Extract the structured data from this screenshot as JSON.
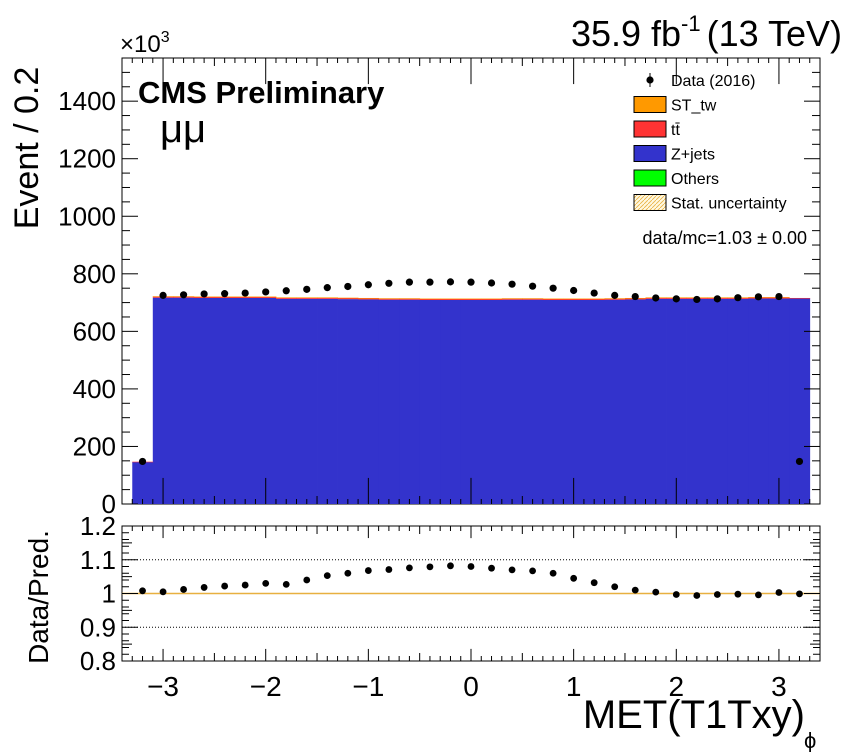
{
  "lumi_label": "35.9 fb",
  "lumi_sup": "-1",
  "energy_label": "(13 TeV)",
  "cms_label": "CMS Preliminary",
  "channel_label": "μμ",
  "exponent_prefix": "×10",
  "exponent_sup": "3",
  "ratio_text": "data/mc=1.03 ± 0.00",
  "legend": [
    {
      "label": "Data (2016)",
      "kind": "data"
    },
    {
      "label": "ST_tw",
      "kind": "fill",
      "color": "#ff9900"
    },
    {
      "label": "tt̄",
      "kind": "fill",
      "color": "#ff3333"
    },
    {
      "label": "Z+jets",
      "kind": "fill",
      "color": "#3333cc"
    },
    {
      "label": "Others",
      "kind": "fill",
      "color": "#00ff00"
    },
    {
      "label": "Stat. uncertainty",
      "kind": "hatch",
      "color": "#ffcc66"
    }
  ],
  "chart_data": [
    {
      "type": "bar",
      "subtype": "stacked-histogram",
      "ylabel": "Event / 0.2",
      "ylim": [
        0,
        1550
      ],
      "y_ticks": [
        0,
        200,
        400,
        600,
        800,
        1000,
        1200,
        1400
      ],
      "xlim": [
        -3.4,
        3.4
      ],
      "bin_edges": [
        -3.3,
        -3.1,
        -2.9,
        -2.7,
        -2.5,
        -2.3,
        -2.1,
        -1.9,
        -1.7,
        -1.5,
        -1.3,
        -1.1,
        -0.9,
        -0.7,
        -0.5,
        -0.3,
        -0.1,
        0.1,
        0.3,
        0.5,
        0.7,
        0.9,
        1.1,
        1.3,
        1.5,
        1.7,
        1.9,
        2.1,
        2.3,
        2.5,
        2.7,
        2.9,
        3.1,
        3.3
      ],
      "stack_series": [
        {
          "name": "Z+jets",
          "color": "#3333cc",
          "values": [
            146,
            717,
            717,
            716,
            716,
            716,
            716,
            713,
            713,
            713,
            712,
            711,
            710,
            710,
            709,
            709,
            709,
            709,
            710,
            710,
            709,
            709,
            709,
            710,
            711,
            713,
            713,
            713,
            713,
            713,
            714,
            714,
            715
          ]
        },
        {
          "name": "tt̄",
          "color": "#ff3333",
          "values": [
            1,
            4,
            4,
            4,
            4,
            4,
            4,
            4,
            4,
            4,
            4,
            4,
            4,
            4,
            4,
            4,
            4,
            4,
            4,
            4,
            4,
            4,
            4,
            4,
            4,
            4,
            4,
            4,
            4,
            4,
            4,
            4,
            1
          ]
        },
        {
          "name": "ST_tw",
          "color": "#ff9900",
          "values": [
            0,
            1,
            1,
            1,
            1,
            1,
            1,
            1,
            1,
            1,
            1,
            1,
            1,
            1,
            1,
            1,
            1,
            1,
            1,
            1,
            1,
            1,
            1,
            1,
            1,
            1,
            1,
            1,
            1,
            1,
            1,
            1,
            0
          ]
        }
      ],
      "data_series": {
        "name": "Data (2016)",
        "x": [
          -3.2,
          -3.0,
          -2.8,
          -2.6,
          -2.4,
          -2.2,
          -2.0,
          -1.8,
          -1.6,
          -1.4,
          -1.2,
          -1.0,
          -0.8,
          -0.6,
          -0.4,
          -0.2,
          0.0,
          0.2,
          0.4,
          0.6,
          0.8,
          1.0,
          1.2,
          1.4,
          1.6,
          1.8,
          2.0,
          2.2,
          2.4,
          2.6,
          2.8,
          3.0,
          3.2
        ],
        "values": [
          148,
          725,
          727,
          730,
          731,
          733,
          737,
          741,
          746,
          752,
          756,
          762,
          767,
          771,
          771,
          772,
          771,
          768,
          764,
          757,
          750,
          742,
          733,
          725,
          721,
          716,
          713,
          711,
          713,
          717,
          720,
          721,
          148
        ]
      }
    },
    {
      "type": "scatter",
      "xlabel": "MET(T1Txy)",
      "xlabel_sub": "ϕ",
      "ylabel": "Data/Pred.",
      "ylim": [
        0.8,
        1.2
      ],
      "y_ticks": [
        0.8,
        0.9,
        1.0,
        1.1,
        1.2
      ],
      "y_tick_labels": [
        "0.8",
        "0.9",
        "1",
        "1.1",
        "1.2"
      ],
      "x_ticks": [
        -3,
        -2,
        -1,
        0,
        1,
        2,
        3
      ],
      "x_tick_labels": [
        "−3",
        "−2",
        "−1",
        "0",
        "1",
        "2",
        "3"
      ],
      "reference_lines": [
        0.9,
        1.1
      ],
      "x": [
        -3.2,
        -3.0,
        -2.8,
        -2.6,
        -2.4,
        -2.2,
        -2.0,
        -1.8,
        -1.6,
        -1.4,
        -1.2,
        -1.0,
        -0.8,
        -0.6,
        -0.4,
        -0.2,
        0.0,
        0.2,
        0.4,
        0.6,
        0.8,
        1.0,
        1.2,
        1.4,
        1.6,
        1.8,
        2.0,
        2.2,
        2.4,
        2.6,
        2.8,
        3.0,
        3.2
      ],
      "values": [
        1.008,
        1.005,
        1.012,
        1.018,
        1.022,
        1.025,
        1.03,
        1.027,
        1.04,
        1.053,
        1.06,
        1.068,
        1.071,
        1.076,
        1.079,
        1.082,
        1.08,
        1.075,
        1.07,
        1.067,
        1.06,
        1.045,
        1.032,
        1.02,
        1.01,
        1.004,
        0.997,
        0.994,
        0.997,
        0.998,
        0.996,
        1.003,
        0.999
      ]
    }
  ]
}
